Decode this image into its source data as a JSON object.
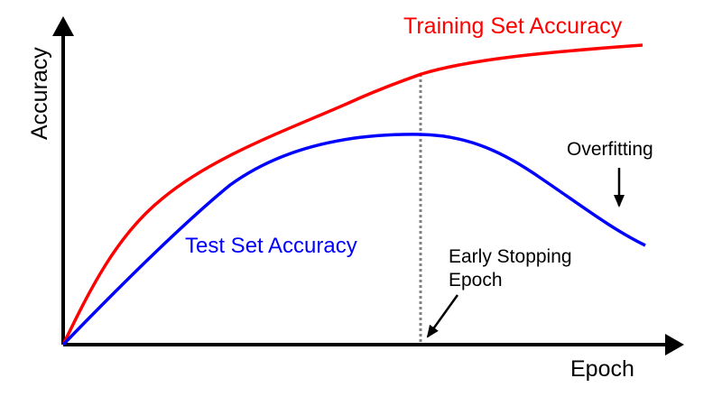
{
  "axes": {
    "x_label": "Epoch",
    "y_label": "Accuracy"
  },
  "curves": {
    "training": {
      "label": "Training Set Accuracy",
      "color": "#ff0000"
    },
    "test": {
      "label": "Test Set Accuracy",
      "color": "#0000ff"
    }
  },
  "annotations": {
    "overfitting": "Overfitting",
    "early_stopping_line1": "Early Stopping",
    "early_stopping_line2": "Epoch"
  },
  "colors": {
    "axis": "#000000",
    "marker_line": "#808080"
  }
}
